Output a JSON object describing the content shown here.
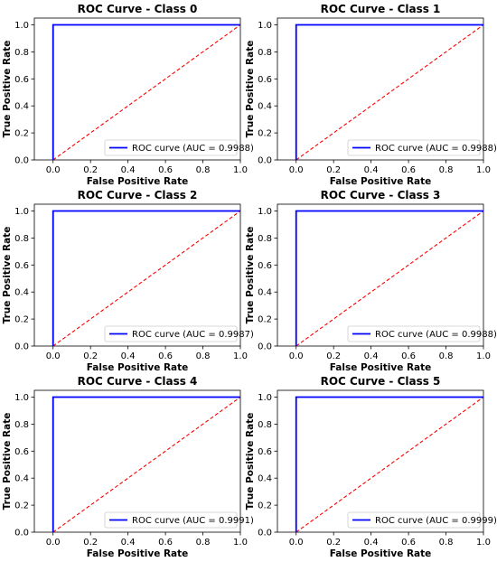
{
  "chart_data": [
    {
      "type": "line",
      "title": "ROC Curve - Class 0",
      "xlabel": "False Positive Rate",
      "ylabel": "True Positive Rate",
      "xlim": [
        -0.1,
        1.0
      ],
      "ylim": [
        0.0,
        1.05
      ],
      "x_ticks": [
        "0.0",
        "0.2",
        "0.4",
        "0.6",
        "0.8",
        "1.0"
      ],
      "y_ticks": [
        "0.0",
        "0.2",
        "0.4",
        "0.6",
        "0.8",
        "1.0"
      ],
      "grid": false,
      "legend_position": "lower-right",
      "series": [
        {
          "name": "ROC curve (AUC = 0.9988)",
          "color": "#0000ff",
          "x": [
            0.0,
            0.0,
            1.0
          ],
          "y": [
            0.0,
            1.0,
            1.0
          ]
        },
        {
          "color": "#ff0000",
          "style": "dashed",
          "x": [
            0.0,
            1.0
          ],
          "y": [
            0.0,
            1.0
          ]
        }
      ]
    },
    {
      "type": "line",
      "title": "ROC Curve - Class 1",
      "xlabel": "False Positive Rate",
      "ylabel": "True Positive Rate",
      "xlim": [
        -0.1,
        1.0
      ],
      "ylim": [
        0.0,
        1.05
      ],
      "x_ticks": [
        "0.0",
        "0.2",
        "0.4",
        "0.6",
        "0.8",
        "1.0"
      ],
      "y_ticks": [
        "0.0",
        "0.2",
        "0.4",
        "0.6",
        "0.8",
        "1.0"
      ],
      "grid": false,
      "legend_position": "lower-right",
      "series": [
        {
          "name": "ROC curve (AUC = 0.9988)",
          "color": "#0000ff",
          "x": [
            0.0,
            0.0,
            1.0
          ],
          "y": [
            0.0,
            1.0,
            1.0
          ]
        },
        {
          "color": "#ff0000",
          "style": "dashed",
          "x": [
            0.0,
            1.0
          ],
          "y": [
            0.0,
            1.0
          ]
        }
      ]
    },
    {
      "type": "line",
      "title": "ROC Curve - Class 2",
      "xlabel": "False Positive Rate",
      "ylabel": "True Positive Rate",
      "xlim": [
        -0.1,
        1.0
      ],
      "ylim": [
        0.0,
        1.05
      ],
      "x_ticks": [
        "0.0",
        "0.2",
        "0.4",
        "0.6",
        "0.8",
        "1.0"
      ],
      "y_ticks": [
        "0.0",
        "0.2",
        "0.4",
        "0.6",
        "0.8",
        "1.0"
      ],
      "grid": false,
      "legend_position": "lower-right",
      "series": [
        {
          "name": "ROC curve (AUC = 0.9987)",
          "color": "#0000ff",
          "x": [
            0.0,
            0.0,
            1.0
          ],
          "y": [
            0.0,
            1.0,
            1.0
          ]
        },
        {
          "color": "#ff0000",
          "style": "dashed",
          "x": [
            0.0,
            1.0
          ],
          "y": [
            0.0,
            1.0
          ]
        }
      ]
    },
    {
      "type": "line",
      "title": "ROC Curve - Class 3",
      "xlabel": "False Positive Rate",
      "ylabel": "True Positive Rate",
      "xlim": [
        -0.1,
        1.0
      ],
      "ylim": [
        0.0,
        1.05
      ],
      "x_ticks": [
        "0.0",
        "0.2",
        "0.4",
        "0.6",
        "0.8",
        "1.0"
      ],
      "y_ticks": [
        "0.0",
        "0.2",
        "0.4",
        "0.6",
        "0.8",
        "1.0"
      ],
      "grid": false,
      "legend_position": "lower-right",
      "series": [
        {
          "name": "ROC curve (AUC = 0.9988)",
          "color": "#0000ff",
          "x": [
            0.0,
            0.0,
            1.0
          ],
          "y": [
            0.0,
            1.0,
            1.0
          ]
        },
        {
          "color": "#ff0000",
          "style": "dashed",
          "x": [
            0.0,
            1.0
          ],
          "y": [
            0.0,
            1.0
          ]
        }
      ]
    },
    {
      "type": "line",
      "title": "ROC Curve - Class 4",
      "xlabel": "False Positive Rate",
      "ylabel": "True Positive Rate",
      "xlim": [
        -0.1,
        1.0
      ],
      "ylim": [
        0.0,
        1.05
      ],
      "x_ticks": [
        "0.0",
        "0.2",
        "0.4",
        "0.6",
        "0.8",
        "1.0"
      ],
      "y_ticks": [
        "0.0",
        "0.2",
        "0.4",
        "0.6",
        "0.8",
        "1.0"
      ],
      "grid": false,
      "legend_position": "lower-right",
      "series": [
        {
          "name": "ROC curve (AUC = 0.9991)",
          "color": "#0000ff",
          "x": [
            0.0,
            0.0,
            1.0
          ],
          "y": [
            0.0,
            1.0,
            1.0
          ]
        },
        {
          "color": "#ff0000",
          "style": "dashed",
          "x": [
            0.0,
            1.0
          ],
          "y": [
            0.0,
            1.0
          ]
        }
      ]
    },
    {
      "type": "line",
      "title": "ROC Curve - Class 5",
      "xlabel": "False Positive Rate",
      "ylabel": "True Positive Rate",
      "xlim": [
        -0.1,
        1.0
      ],
      "ylim": [
        0.0,
        1.05
      ],
      "x_ticks": [
        "0.0",
        "0.2",
        "0.4",
        "0.6",
        "0.8",
        "1.0"
      ],
      "y_ticks": [
        "0.0",
        "0.2",
        "0.4",
        "0.6",
        "0.8",
        "1.0"
      ],
      "grid": false,
      "legend_position": "lower-right",
      "series": [
        {
          "name": "ROC curve (AUC = 0.9999)",
          "color": "#0000ff",
          "x": [
            0.0,
            0.0,
            1.0
          ],
          "y": [
            0.0,
            1.0,
            1.0
          ]
        },
        {
          "color": "#ff0000",
          "style": "dashed",
          "x": [
            0.0,
            1.0
          ],
          "y": [
            0.0,
            1.0
          ]
        }
      ]
    }
  ]
}
